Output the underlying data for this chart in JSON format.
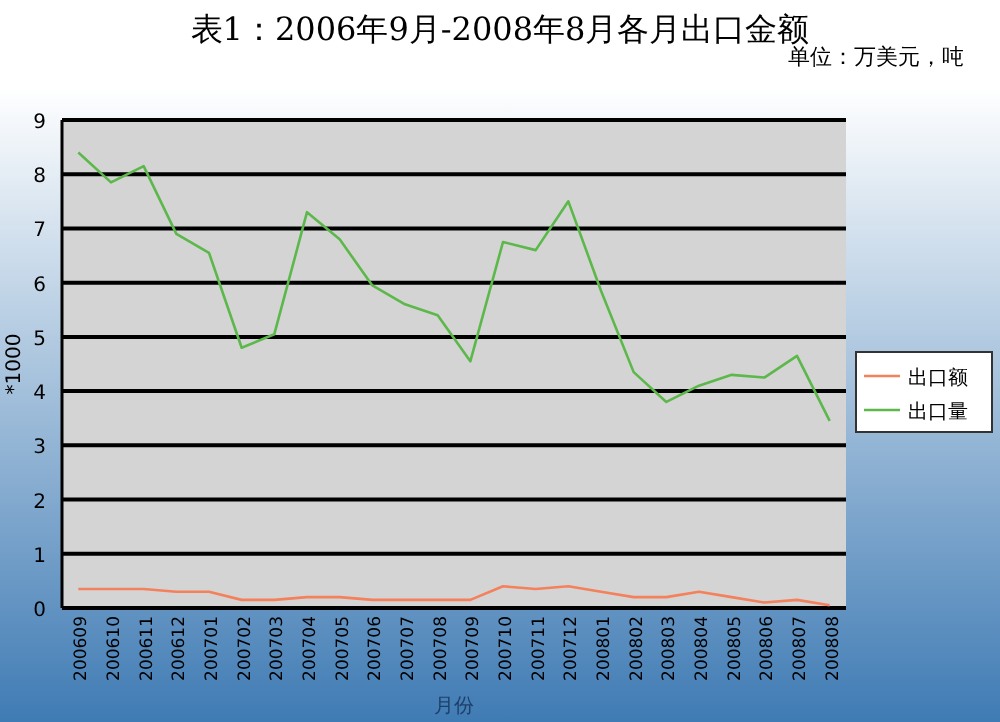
{
  "chart_data": {
    "type": "line",
    "title": "表1：2006年9月-2008年8月各月出口金额",
    "subtitle": "单位：万美元，吨",
    "xlabel": "月份",
    "ylabel": "*1000",
    "categories": [
      "200609",
      "200610",
      "200611",
      "200612",
      "200701",
      "200702",
      "200703",
      "200704",
      "200705",
      "200706",
      "200707",
      "200708",
      "200709",
      "200710",
      "200711",
      "200712",
      "200801",
      "200802",
      "200803",
      "200804",
      "200805",
      "200806",
      "200807",
      "200808"
    ],
    "series": [
      {
        "name": "出口额",
        "color": "#f4805c",
        "values": [
          0.35,
          0.35,
          0.35,
          0.3,
          0.3,
          0.15,
          0.15,
          0.2,
          0.2,
          0.15,
          0.15,
          0.15,
          0.15,
          0.4,
          0.35,
          0.4,
          0.3,
          0.2,
          0.2,
          0.3,
          0.2,
          0.1,
          0.15,
          0.05
        ]
      },
      {
        "name": "出口量",
        "color": "#5cb84a",
        "values": [
          8.4,
          7.85,
          8.15,
          6.9,
          6.55,
          4.8,
          5.05,
          7.3,
          6.8,
          5.95,
          5.6,
          5.4,
          4.55,
          6.75,
          6.6,
          7.5,
          5.85,
          4.35,
          3.8,
          4.1,
          4.3,
          4.25,
          4.65,
          3.45
        ]
      }
    ],
    "ylim": [
      0,
      9
    ],
    "yticks": [
      0,
      1,
      2,
      3,
      4,
      5,
      6,
      7,
      8,
      9
    ],
    "grid": "y",
    "legend": "right",
    "marker": "none",
    "line_style": "solid"
  }
}
